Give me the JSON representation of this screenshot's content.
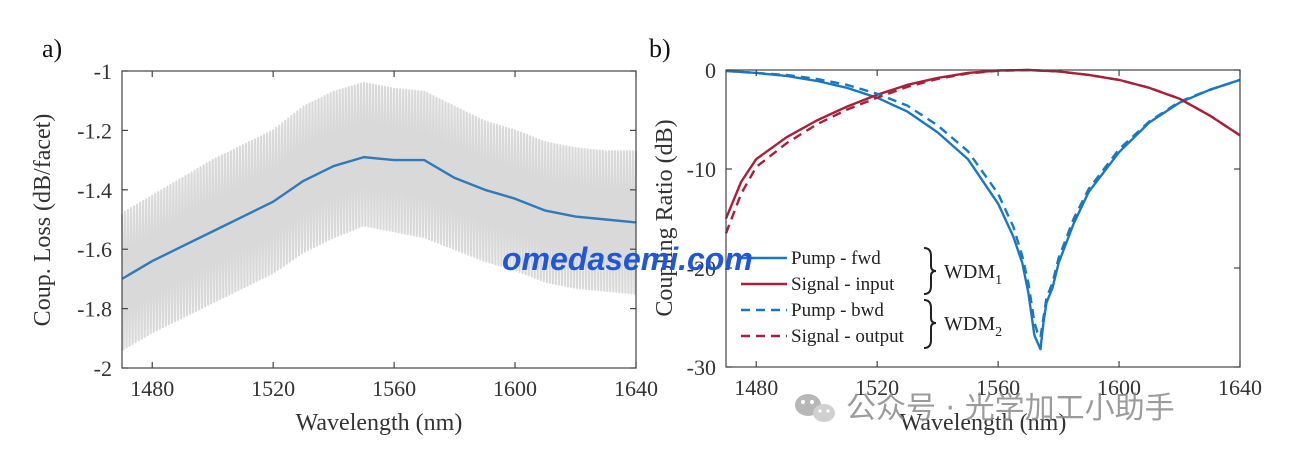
{
  "chart_data": [
    {
      "panel_label": "a)",
      "type": "line",
      "xlabel": "Wavelength (nm)",
      "ylabel": "Coup. Loss (dB/facet)",
      "xlim": [
        1470,
        1640
      ],
      "ylim": [
        -2,
        -1
      ],
      "xticks": [
        1480,
        1520,
        1560,
        1600,
        1640
      ],
      "yticks": [
        -1,
        -1.2,
        -1.4,
        -1.6,
        -1.8,
        -2
      ],
      "ytick_labels": [
        "-1",
        "-1.2",
        "-1.4",
        "-1.6",
        "-1.8",
        "-2"
      ],
      "grid": false,
      "series": [
        {
          "style": "line",
          "color": "#2f7ab9",
          "x": [
            1470,
            1480,
            1490,
            1500,
            1510,
            1520,
            1530,
            1540,
            1550,
            1560,
            1570,
            1580,
            1590,
            1600,
            1610,
            1620,
            1630,
            1640
          ],
          "y": [
            -1.7,
            -1.64,
            -1.59,
            -1.54,
            -1.49,
            -1.44,
            -1.37,
            -1.32,
            -1.29,
            -1.3,
            -1.3,
            -1.36,
            -1.4,
            -1.43,
            -1.47,
            -1.49,
            -1.5,
            -1.51
          ]
        }
      ],
      "band": {
        "style": "shaded-oscillation",
        "color": "#d9d9d9",
        "x": [
          1470,
          1480,
          1490,
          1500,
          1510,
          1520,
          1530,
          1540,
          1550,
          1560,
          1570,
          1580,
          1590,
          1600,
          1610,
          1620,
          1630,
          1640
        ],
        "upper": [
          -1.48,
          -1.42,
          -1.36,
          -1.3,
          -1.25,
          -1.2,
          -1.12,
          -1.07,
          -1.04,
          -1.06,
          -1.07,
          -1.12,
          -1.17,
          -1.2,
          -1.24,
          -1.26,
          -1.27,
          -1.27
        ],
        "lower": [
          -1.94,
          -1.88,
          -1.83,
          -1.78,
          -1.73,
          -1.68,
          -1.61,
          -1.56,
          -1.52,
          -1.54,
          -1.56,
          -1.6,
          -1.64,
          -1.67,
          -1.71,
          -1.73,
          -1.74,
          -1.75
        ]
      }
    },
    {
      "panel_label": "b)",
      "type": "line",
      "xlabel": "Wavelength (nm)",
      "ylabel": "Coupling Ratio (dB)",
      "xlim": [
        1470,
        1640
      ],
      "ylim": [
        -30,
        0
      ],
      "xticks": [
        1480,
        1520,
        1560,
        1600,
        1640
      ],
      "yticks": [
        0,
        -10,
        -20,
        -30
      ],
      "ytick_labels": [
        "0",
        "-10",
        "-20",
        "-30"
      ],
      "grid": false,
      "series": [
        {
          "name": "Pump - fwd",
          "dash": "solid",
          "color": "#1a78c2",
          "x": [
            1470,
            1480,
            1490,
            1500,
            1510,
            1520,
            1530,
            1540,
            1550,
            1560,
            1565,
            1568,
            1570,
            1572,
            1573,
            1574,
            1575,
            1576,
            1578,
            1580,
            1585,
            1590,
            1600,
            1610,
            1620,
            1630,
            1640
          ],
          "y": [
            -0.1,
            -0.3,
            -0.6,
            -1.1,
            -1.8,
            -2.8,
            -4.2,
            -6.3,
            -9.0,
            -13.5,
            -16.8,
            -19.5,
            -22.5,
            -26.8,
            -27.5,
            -28.2,
            -25.5,
            -23.5,
            -22.0,
            -19.5,
            -15.5,
            -12.3,
            -8.3,
            -5.3,
            -3.3,
            -2.0,
            -1.0
          ]
        },
        {
          "name": "Signal - input",
          "dash": "solid",
          "color": "#a8203a",
          "x": [
            1470,
            1475,
            1480,
            1490,
            1500,
            1510,
            1520,
            1530,
            1540,
            1550,
            1560,
            1570,
            1580,
            1590,
            1600,
            1610,
            1620,
            1630,
            1640
          ],
          "y": [
            -15.0,
            -11.3,
            -9.0,
            -6.8,
            -5.1,
            -3.7,
            -2.5,
            -1.5,
            -0.8,
            -0.3,
            -0.05,
            0.0,
            -0.15,
            -0.5,
            -1.0,
            -1.8,
            -2.9,
            -4.6,
            -6.6
          ]
        },
        {
          "name": "Pump - bwd",
          "dash": "dashed",
          "color": "#1a78c2",
          "x": [
            1470,
            1480,
            1490,
            1500,
            1510,
            1520,
            1530,
            1540,
            1550,
            1560,
            1565,
            1568,
            1570,
            1572,
            1573,
            1574,
            1575,
            1576,
            1578,
            1580,
            1585,
            1590,
            1600,
            1610,
            1620,
            1630,
            1640
          ],
          "y": [
            -0.1,
            -0.3,
            -0.5,
            -0.9,
            -1.5,
            -2.4,
            -3.6,
            -5.6,
            -8.2,
            -12.5,
            -15.8,
            -18.8,
            -21.5,
            -25.5,
            -26.5,
            -27.0,
            -25.0,
            -23.0,
            -21.5,
            -19.0,
            -15.0,
            -12.0,
            -8.0,
            -5.2,
            -3.2,
            -2.0,
            -1.0
          ]
        },
        {
          "name": "Signal - output",
          "dash": "dashed",
          "color": "#a8203a",
          "x": [
            1470,
            1475,
            1480,
            1490,
            1500,
            1510,
            1520,
            1530,
            1540,
            1550,
            1560,
            1570,
            1580,
            1590,
            1600,
            1610,
            1620,
            1630,
            1640
          ],
          "y": [
            -16.5,
            -12.5,
            -9.8,
            -7.4,
            -5.5,
            -4.0,
            -2.8,
            -1.7,
            -0.9,
            -0.35,
            -0.08,
            0.0,
            -0.15,
            -0.5,
            -1.0,
            -1.8,
            -2.9,
            -4.6,
            -6.6
          ]
        }
      ],
      "legend": {
        "placement": "lower-left",
        "entries": [
          "Pump - fwd",
          "Signal - input",
          "Pump - bwd",
          "Signal - output"
        ],
        "groups": [
          {
            "label": "WDM",
            "subscript": "1",
            "members": [
              "Pump - fwd",
              "Signal - input"
            ]
          },
          {
            "label": "WDM",
            "subscript": "2",
            "members": [
              "Pump - bwd",
              "Signal - output"
            ]
          }
        ]
      }
    }
  ],
  "watermark": {
    "text": "omedasemi.com",
    "color": "#1f57d6"
  },
  "wechat": {
    "text": "公众号 · 光学加工小助手",
    "icon": "wechat-icon"
  }
}
